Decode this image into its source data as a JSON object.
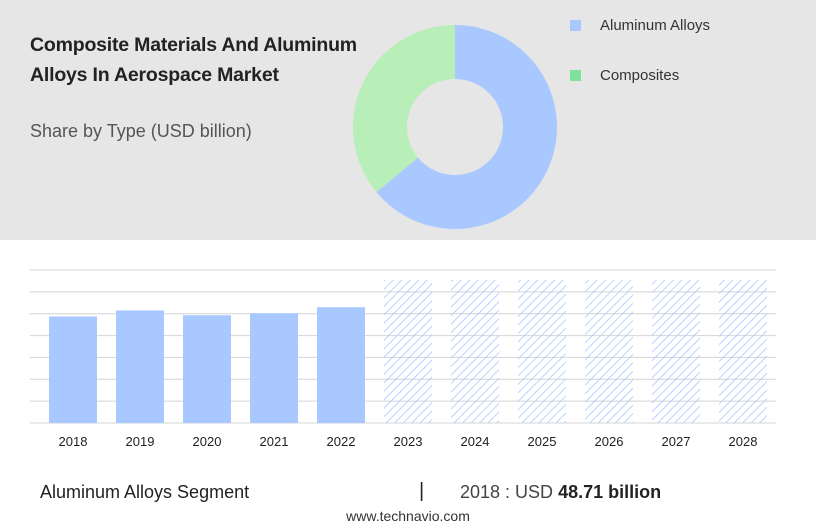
{
  "header": {
    "title": "Composite Materials And Aluminum Alloys In Aerospace Market",
    "subtitle": "Share by Type (USD billion)"
  },
  "colors": {
    "aluminum": "#a8c8ff",
    "composites_donut": "#b8efb8",
    "composites_legend": "#7ee29a",
    "panel_bg": "#e6e6e6",
    "grid": "#d4d4d4",
    "hatch": "#a8c8ff"
  },
  "chart_data": [
    {
      "type": "pie",
      "variant": "donut",
      "title": "Share by Type (USD billion)",
      "series": [
        {
          "name": "Aluminum Alloys",
          "share": 0.64
        },
        {
          "name": "Composites",
          "share": 0.36
        }
      ],
      "legend_position": "right"
    },
    {
      "type": "bar",
      "categories": [
        "2018",
        "2019",
        "2020",
        "2021",
        "2022",
        "2023",
        "2024",
        "2025",
        "2026",
        "2027",
        "2028"
      ],
      "values": [
        48.71,
        51.5,
        49.3,
        50.2,
        53.0,
        null,
        null,
        null,
        null,
        null,
        null
      ],
      "forecast_categories": [
        "2023",
        "2024",
        "2025",
        "2026",
        "2027",
        "2028"
      ],
      "ylim": [
        0,
        70
      ],
      "grid": true
    }
  ],
  "legend": {
    "items": [
      "Aluminum Alloys",
      "Composites"
    ]
  },
  "footer": {
    "segment": "Aluminum Alloys Segment",
    "separator": "|",
    "year_prefix": "2018 : USD",
    "value": "48.71 billion",
    "website": "www.technavio.com"
  }
}
